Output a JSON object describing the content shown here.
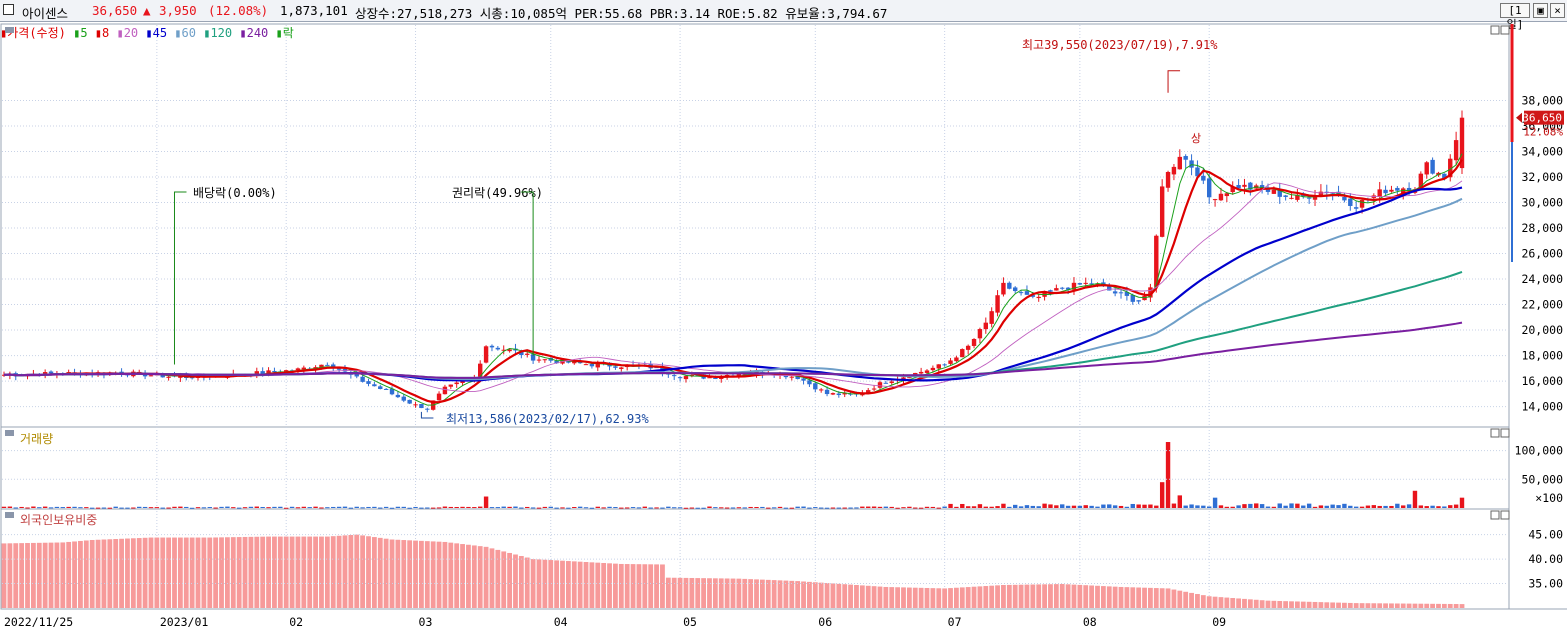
{
  "header": {
    "stock_name": "아이센스",
    "price": "36,650",
    "change_arrow": "▲",
    "change": "3,950",
    "change_pct": "(12.08%)",
    "volume": "1,873,101",
    "info": "상장수:27,518,273 시총:10,085억 PER:55.68 PBR:3.14 ROE:5.82 유보율:3,794.67",
    "period_button": "[1일]",
    "close_glyph": "×",
    "restore_glyph": "▣"
  },
  "legend": {
    "price": {
      "label": "가격(수정)",
      "color": "#dd0000"
    },
    "ma": [
      {
        "label": "5",
        "color": "#1aa01a"
      },
      {
        "label": "8",
        "color": "#dd0000"
      },
      {
        "label": "20",
        "color": "#c060c0"
      },
      {
        "label": "45",
        "color": "#0000cc"
      },
      {
        "label": "60",
        "color": "#6f9fc8"
      },
      {
        "label": "120",
        "color": "#20a080"
      },
      {
        "label": "240",
        "color": "#7a1fa0"
      }
    ],
    "ex": {
      "label": "락",
      "color": "#1aa01a"
    }
  },
  "panels": {
    "volume_title": "거래량",
    "foreign_title": "외국인보유비중"
  },
  "colors": {
    "up": "#e8141c",
    "down": "#2f6fd4",
    "foreign_bar": "#f79a9a",
    "grid": "#c8d2e6",
    "axis_text": "#000000"
  },
  "chart_data": [
    {
      "type": "candlestick",
      "title": "가격(수정)",
      "ylim": [
        12400,
        41800
      ],
      "y_ticks": [
        "14,000",
        "16,000",
        "18,000",
        "20,000",
        "22,000",
        "24,000",
        "26,000",
        "28,000",
        "30,000",
        "32,000",
        "34,000",
        "36,000",
        "38,000"
      ],
      "current_price_label": "36,650",
      "current_pct_label": "12.08%",
      "x_labels": [
        "2022/11/25",
        "2023/01",
        "02",
        "03",
        "04",
        "05",
        "06",
        "07",
        "08",
        "09"
      ],
      "annotations": {
        "high": "최고39,550(2023/07/19),7.91%",
        "low": "최저13,586(2023/02/17),62.93%",
        "dividend": "배당락(0.00%)",
        "rights": "권리락(49.96%)",
        "limit_up": "상"
      },
      "price_anchors": [
        [
          0,
          16500
        ],
        [
          10,
          16600
        ],
        [
          20,
          16650
        ],
        [
          30,
          16300
        ],
        [
          40,
          16500
        ],
        [
          50,
          16900
        ],
        [
          55,
          17400
        ],
        [
          60,
          16200
        ],
        [
          65,
          15200
        ],
        [
          70,
          14100
        ],
        [
          72,
          13900
        ],
        [
          75,
          15400
        ],
        [
          80,
          16300
        ],
        [
          82,
          18800
        ],
        [
          87,
          18300
        ],
        [
          90,
          17800
        ],
        [
          95,
          17500
        ],
        [
          100,
          17300
        ],
        [
          110,
          17100
        ],
        [
          115,
          16400
        ],
        [
          120,
          16300
        ],
        [
          125,
          16600
        ],
        [
          130,
          16700
        ],
        [
          135,
          16300
        ],
        [
          140,
          15000
        ],
        [
          145,
          14900
        ],
        [
          150,
          16000
        ],
        [
          155,
          16600
        ],
        [
          160,
          17300
        ],
        [
          164,
          18700
        ],
        [
          167,
          20500
        ],
        [
          170,
          23500
        ],
        [
          175,
          22400
        ],
        [
          180,
          23300
        ],
        [
          185,
          23700
        ],
        [
          190,
          22700
        ],
        [
          193,
          22300
        ],
        [
          195,
          23100
        ],
        [
          197,
          31500
        ],
        [
          200,
          33800
        ],
        [
          203,
          32400
        ],
        [
          205,
          30400
        ],
        [
          210,
          31300
        ],
        [
          215,
          30900
        ],
        [
          220,
          30300
        ],
        [
          225,
          31000
        ],
        [
          230,
          29800
        ],
        [
          235,
          31000
        ],
        [
          240,
          31300
        ],
        [
          242,
          32900
        ],
        [
          245,
          32000
        ],
        [
          248,
          36650
        ]
      ],
      "volume": {
        "ylim": [
          0,
          122000
        ],
        "y_ticks": [
          "100,000",
          "50,000"
        ],
        "unit": "×100",
        "spikes": [
          [
            82,
            20000
          ],
          [
            197,
            45000
          ],
          [
            198,
            115000
          ],
          [
            200,
            22000
          ],
          [
            206,
            18000
          ],
          [
            213,
            8000
          ],
          [
            219,
            8000
          ],
          [
            240,
            30000
          ],
          [
            248,
            18000
          ]
        ]
      },
      "foreign_holding": {
        "ylim": [
          30.0,
          48.6
        ],
        "y_ticks": [
          "45.00",
          "40.00",
          "35.00"
        ],
        "anchors": [
          [
            0,
            43.2
          ],
          [
            10,
            43.4
          ],
          [
            15,
            43.9
          ],
          [
            25,
            44.4
          ],
          [
            35,
            44.4
          ],
          [
            45,
            44.6
          ],
          [
            55,
            44.6
          ],
          [
            60,
            45.0
          ],
          [
            66,
            44.0
          ],
          [
            75,
            43.5
          ],
          [
            82,
            42.5
          ],
          [
            90,
            40.0
          ],
          [
            105,
            39.0
          ],
          [
            112,
            38.9
          ],
          [
            113,
            36.2
          ],
          [
            125,
            36.0
          ],
          [
            135,
            35.5
          ],
          [
            150,
            34.3
          ],
          [
            160,
            34.0
          ],
          [
            170,
            34.7
          ],
          [
            180,
            34.9
          ],
          [
            190,
            34.3
          ],
          [
            198,
            34.0
          ],
          [
            205,
            32.4
          ],
          [
            215,
            31.5
          ],
          [
            230,
            31.0
          ],
          [
            248,
            30.8
          ]
        ]
      }
    }
  ]
}
